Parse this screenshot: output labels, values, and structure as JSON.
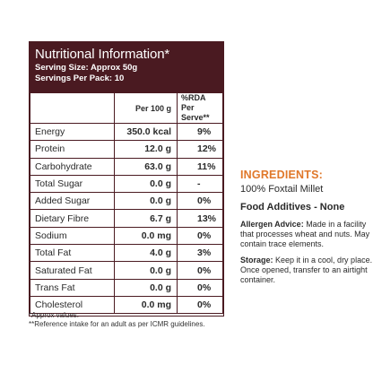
{
  "panel": {
    "title": "Nutritional Information*",
    "serving_size": "Serving Size: Approx 50g",
    "servings_per_pack": "Servings Per Pack: 10",
    "col_per_100g": "Per 100 g",
    "col_rda_line1": "%RDA Per",
    "col_rda_line2": "Serve**",
    "rows": [
      {
        "nutrient": "Energy",
        "per100": "350.0 kcal",
        "rda": "9%"
      },
      {
        "nutrient": "Protein",
        "per100": "12.0 g",
        "rda": "12%"
      },
      {
        "nutrient": "Carbohydrate",
        "per100": "63.0 g",
        "rda": "11%"
      },
      {
        "nutrient": "Total Sugar",
        "per100": "0.0 g",
        "rda": "-"
      },
      {
        "nutrient": "Added Sugar",
        "per100": "0.0 g",
        "rda": "0%"
      },
      {
        "nutrient": "Dietary Fibre",
        "per100": "6.7 g",
        "rda": "13%"
      },
      {
        "nutrient": "Sodium",
        "per100": "0.0 mg",
        "rda": "0%"
      },
      {
        "nutrient": "Total Fat",
        "per100": "4.0 g",
        "rda": "3%"
      },
      {
        "nutrient": "Saturated Fat",
        "per100": "0.0 g",
        "rda": "0%"
      },
      {
        "nutrient": "Trans Fat",
        "per100": "0.0 g",
        "rda": "0%"
      },
      {
        "nutrient": "Cholesterol",
        "per100": "0.0 mg",
        "rda": "0%"
      }
    ]
  },
  "footnotes": {
    "approx": "*Approx values.",
    "reference": "**Reference intake for an adult as per ICMR guidelines."
  },
  "ingredients": {
    "title": "INGREDIENTS:",
    "text": "100% Foxtail Millet",
    "additives": "Food Additives - None",
    "allergen_label": "Allergen Advice:",
    "allergen_text": " Made in a facility that processes wheat and nuts. May contain trace elements.",
    "storage_label": "Storage:",
    "storage_text": " Keep it in a cool, dry place. Once opened, transfer to an airtight container."
  },
  "colors": {
    "panel_header": "#4a1a21",
    "ingredients_title": "#e0782a"
  }
}
